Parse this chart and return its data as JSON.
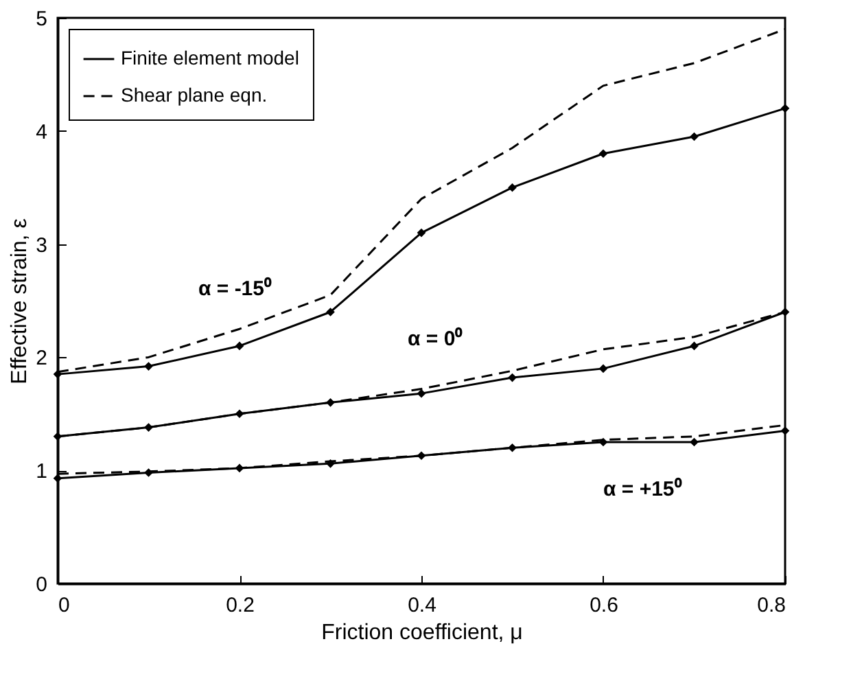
{
  "chart_data": {
    "type": "line",
    "xlabel": "Friction coefficient, μ",
    "ylabel": "Effective strain, ε",
    "x": [
      0,
      0.1,
      0.2,
      0.3,
      0.4,
      0.5,
      0.6,
      0.7,
      0.8
    ],
    "series": [
      {
        "name": "Finite element model",
        "color": "#000000",
        "marker": "diamond",
        "line_style": "solid",
        "values": [
          1.85,
          1.92,
          2.1,
          2.4,
          3.1,
          3.5,
          3.8,
          3.95,
          4.2
        ]
      },
      {
        "name": "Shear plane eqn.",
        "color": "#000000",
        "marker": "none",
        "line_style": "dashed",
        "values": [
          1.87,
          2.0,
          2.25,
          2.55,
          3.4,
          3.85,
          4.4,
          4.6,
          4.9
        ]
      },
      {
        "color": "#000000",
        "marker": "diamond",
        "line_style": "solid",
        "values": [
          1.3,
          1.38,
          1.5,
          1.6,
          1.68,
          1.82,
          1.9,
          2.1,
          2.4
        ]
      },
      {
        "color": "#000000",
        "marker": "none",
        "line_style": "dashed",
        "values": [
          1.3,
          1.38,
          1.5,
          1.6,
          1.72,
          1.88,
          2.07,
          2.18,
          2.4
        ]
      },
      {
        "color": "#000000",
        "marker": "diamond",
        "line_style": "solid",
        "values": [
          0.93,
          0.98,
          1.02,
          1.06,
          1.13,
          1.2,
          1.25,
          1.25,
          1.35
        ]
      },
      {
        "color": "#000000",
        "marker": "none",
        "line_style": "dashed",
        "values": [
          0.97,
          0.99,
          1.02,
          1.08,
          1.13,
          1.2,
          1.27,
          1.3,
          1.4
        ]
      }
    ],
    "annotations": [
      "α = -15⁰",
      "α = 0⁰",
      "α = +15⁰"
    ],
    "xlim": [
      0,
      0.8
    ],
    "xticks": [
      0,
      0.2,
      0.4,
      0.6,
      0.8
    ],
    "ylim": [
      0,
      5
    ],
    "yticks": [
      0,
      1,
      2,
      3,
      4,
      5
    ],
    "grid": false,
    "legend": "top left"
  }
}
